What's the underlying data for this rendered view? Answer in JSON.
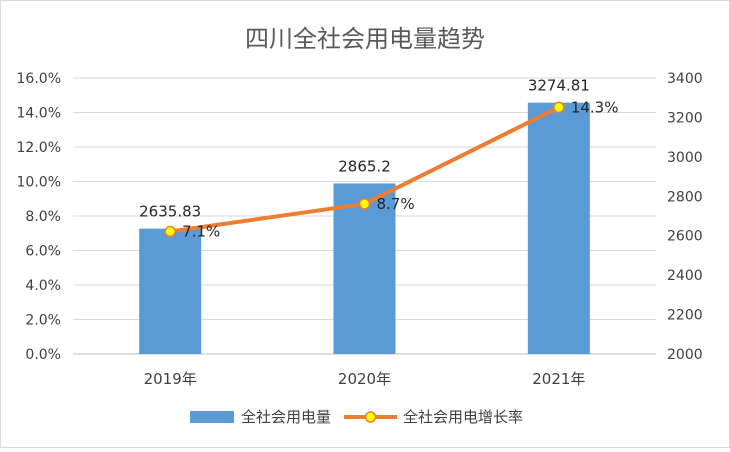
{
  "chart_data": {
    "type": "bar",
    "title": "四川全社会用电量趋势",
    "categories": [
      "2019年",
      "2020年",
      "2021年"
    ],
    "series": [
      {
        "name": "全社会用电量",
        "type": "bar",
        "axis": "right",
        "values": [
          2635.83,
          2865.2,
          3274.81
        ],
        "labels": [
          "2635.83",
          "2865.2",
          "3274.81"
        ],
        "color": "#5b9bd5"
      },
      {
        "name": "全社会用电增长率",
        "type": "line",
        "axis": "left",
        "values": [
          0.071,
          0.087,
          0.143
        ],
        "labels": [
          "7.1%",
          "8.7%",
          "14.3%"
        ],
        "color": "#ed7d31",
        "marker_color": "#ffff00"
      }
    ],
    "y_left": {
      "ylim": [
        0,
        0.16
      ],
      "ticks": [
        0,
        0.02,
        0.04,
        0.06,
        0.08,
        0.1,
        0.12,
        0.14,
        0.16
      ],
      "tick_labels": [
        "0.0%",
        "2.0%",
        "4.0%",
        "6.0%",
        "8.0%",
        "10.0%",
        "12.0%",
        "14.0%",
        "16.0%"
      ]
    },
    "y_right": {
      "ylim": [
        2000,
        3400
      ],
      "ticks": [
        2000,
        2200,
        2400,
        2600,
        2800,
        3000,
        3200,
        3400
      ],
      "tick_labels": [
        "2000",
        "2200",
        "2400",
        "2600",
        "2800",
        "3000",
        "3200",
        "3400"
      ]
    },
    "grid": true,
    "legend_position": "bottom"
  }
}
